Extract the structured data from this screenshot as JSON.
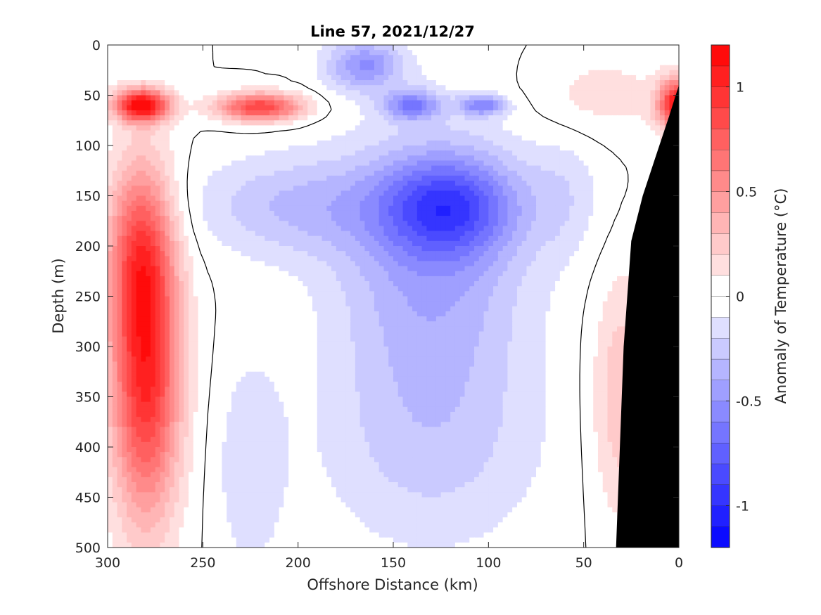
{
  "chart_data": {
    "type": "heatmap",
    "title": "Line 57, 2021/12/27",
    "xlabel": "Offshore Distance (km)",
    "ylabel": "Depth (m)",
    "colorbar_label": "Anomaly of Temperature (°C)",
    "xlim": [
      300,
      0
    ],
    "ylim": [
      0,
      500
    ],
    "x_reversed": true,
    "y_reversed": true,
    "x_ticks": [
      300,
      250,
      200,
      150,
      100,
      50,
      0
    ],
    "y_ticks": [
      0,
      50,
      100,
      150,
      200,
      250,
      300,
      350,
      400,
      450,
      500
    ],
    "clim": [
      -1.2,
      1.2
    ],
    "colorbar_ticks": [
      -1,
      -0.5,
      0,
      0.5,
      1
    ],
    "colorbar_levels": 24,
    "colormap": {
      "negative": "#0000ff",
      "zero": "#ffffff",
      "positive": "#ff0000"
    },
    "zero_contour": true,
    "land_mask_color": "#000000",
    "anomaly_features": [
      {
        "kind": "warm",
        "x_center": 282,
        "z_center": 60,
        "x_radius": 14,
        "z_radius": 16,
        "value": 1.2
      },
      {
        "kind": "warm",
        "x_center": 220,
        "z_center": 62,
        "x_radius": 22,
        "z_radius": 14,
        "value": 0.9
      },
      {
        "kind": "warm",
        "x_center": 280,
        "z_center": 330,
        "x_radius": 18,
        "z_radius": 140,
        "value": 1.0
      },
      {
        "kind": "warm",
        "x_center": 283,
        "z_center": 200,
        "x_radius": 17,
        "z_radius": 90,
        "value": 0.6
      },
      {
        "kind": "warm",
        "x_center": 0,
        "z_center": 60,
        "x_radius": 10,
        "z_radius": 25,
        "value": 1.2
      },
      {
        "kind": "warm",
        "x_center": 30,
        "z_center": 350,
        "x_radius": 16,
        "z_radius": 120,
        "value": 0.3
      },
      {
        "kind": "warm",
        "x_center": 40,
        "z_center": 50,
        "x_radius": 35,
        "z_radius": 40,
        "value": 0.15
      },
      {
        "kind": "cold",
        "x_center": 120,
        "z_center": 160,
        "x_radius": 35,
        "z_radius": 50,
        "value": -0.65
      },
      {
        "kind": "cold",
        "x_center": 130,
        "z_center": 220,
        "x_radius": 50,
        "z_radius": 130,
        "value": -0.4
      },
      {
        "kind": "cold",
        "x_center": 165,
        "z_center": 20,
        "x_radius": 20,
        "z_radius": 25,
        "value": -0.5
      },
      {
        "kind": "cold",
        "x_center": 140,
        "z_center": 60,
        "x_radius": 15,
        "z_radius": 15,
        "value": -0.55
      },
      {
        "kind": "cold",
        "x_center": 103,
        "z_center": 60,
        "x_radius": 12,
        "z_radius": 10,
        "value": -0.55
      },
      {
        "kind": "cold",
        "x_center": 200,
        "z_center": 160,
        "x_radius": 55,
        "z_radius": 50,
        "value": -0.3
      },
      {
        "kind": "cold",
        "x_center": 130,
        "z_center": 400,
        "x_radius": 60,
        "z_radius": 110,
        "value": -0.22
      },
      {
        "kind": "cold",
        "x_center": 225,
        "z_center": 420,
        "x_radius": 18,
        "z_radius": 110,
        "value": -0.18
      },
      {
        "kind": "cold",
        "x_center": 60,
        "z_center": 150,
        "x_radius": 20,
        "z_radius": 60,
        "value": -0.15
      }
    ]
  }
}
